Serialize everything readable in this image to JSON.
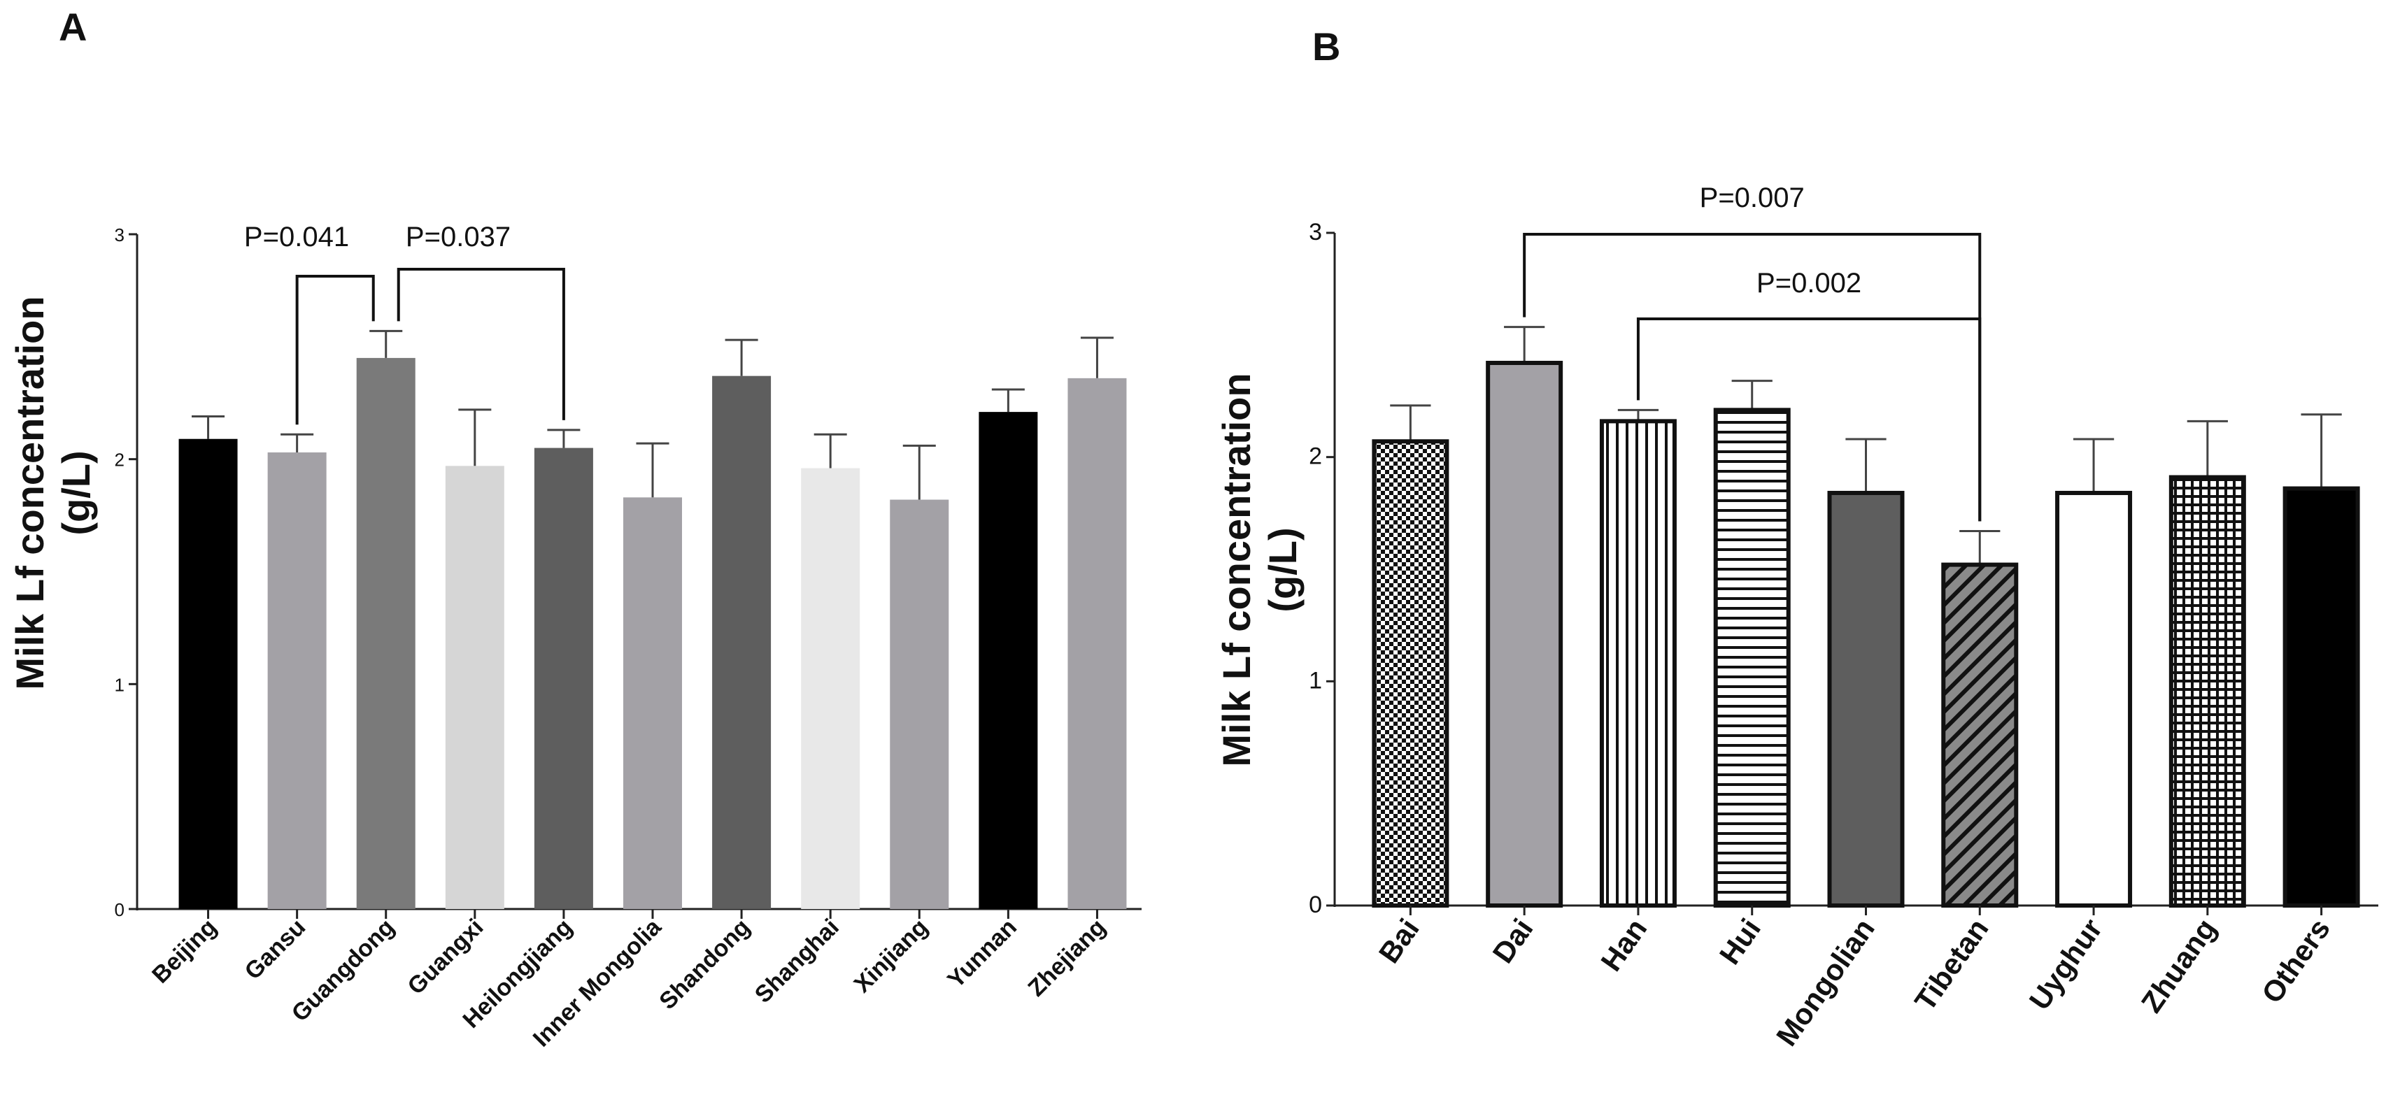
{
  "chart_data": [
    {
      "panel": "A",
      "type": "bar",
      "ylabel_line1": "Milk Lf concentration",
      "ylabel_line2": "(g/L)",
      "ylim": [
        0,
        3
      ],
      "yticks": [
        0,
        1,
        2,
        3
      ],
      "categories": [
        "Beijing",
        "Gansu",
        "Guangdong",
        "Guangxi",
        "Heilongjiang",
        "Inner Mongolia",
        "Shandong",
        "Shanghai",
        "Xinjiang",
        "Yunnan",
        "Zhejiang"
      ],
      "values": [
        2.09,
        2.03,
        2.45,
        1.97,
        2.05,
        1.83,
        2.37,
        1.96,
        1.82,
        2.21,
        2.36
      ],
      "errors": [
        0.1,
        0.08,
        0.12,
        0.25,
        0.08,
        0.24,
        0.16,
        0.15,
        0.24,
        0.1,
        0.18
      ],
      "colors": [
        "#000000",
        "#a3a1a6",
        "#7a7a7a",
        "#d6d6d6",
        "#5e5e5e",
        "#a3a1a6",
        "#5e5e5e",
        "#e8e8e8",
        "#a3a1a6",
        "#000000",
        "#a3a1a6"
      ],
      "comparisons": [
        {
          "label": "P=0.041",
          "from": "Gansu",
          "to": "Guangdong"
        },
        {
          "label": "P=0.037",
          "from": "Guangdong",
          "to": "Heilongjiang"
        }
      ]
    },
    {
      "panel": "B",
      "type": "bar",
      "ylabel_line1": "Milk Lf concentration",
      "ylabel_line2": "(g/L)",
      "ylim": [
        0,
        3
      ],
      "yticks": [
        0,
        1,
        2,
        3
      ],
      "categories": [
        "Bai",
        "Dai",
        "Han",
        "Hui",
        "Mongolian",
        "Tibetan",
        "Uyghur",
        "Zhuang",
        "Others"
      ],
      "values": [
        2.07,
        2.42,
        2.16,
        2.21,
        1.84,
        1.52,
        1.84,
        1.91,
        1.86
      ],
      "errors": [
        0.16,
        0.16,
        0.05,
        0.13,
        0.24,
        0.15,
        0.24,
        0.25,
        0.33
      ],
      "fills": [
        "checker",
        "solid-gray",
        "vlines",
        "hlines",
        "solid-dark",
        "diagonal",
        "white",
        "grid",
        "black"
      ],
      "comparisons": [
        {
          "label": "P=0.007",
          "from": "Dai",
          "to": "Tibetan"
        },
        {
          "label": "P=0.002",
          "from": "Han",
          "to": "Tibetan"
        }
      ]
    }
  ]
}
